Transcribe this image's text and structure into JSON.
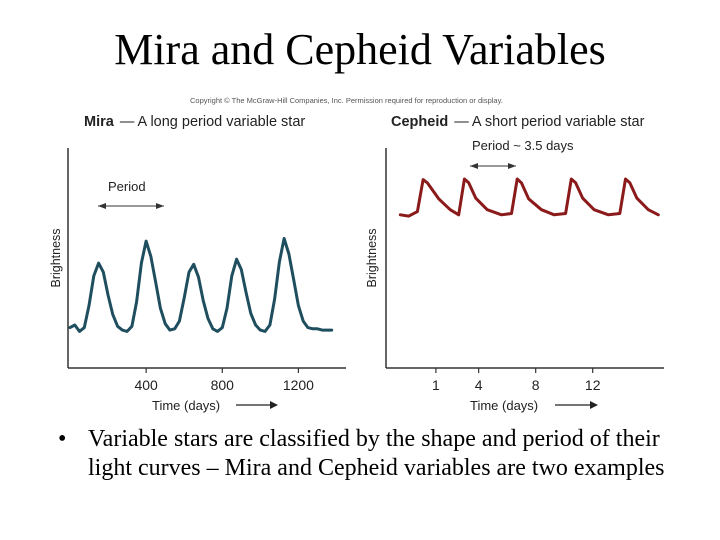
{
  "slide": {
    "title": "Mira and Cepheid Variables",
    "copyright": "Copyright © The McGraw-Hill Companies, Inc. Permission required for reproduction or display.",
    "bullet": "•",
    "caption": "Variable stars are classified by the shape and period of their light curves – Mira and Cepheid variables are two examples"
  },
  "chart_data": [
    {
      "type": "line",
      "title_bold": "Mira",
      "title_rest": "— A long period variable star",
      "xlabel": "Time (days)",
      "ylabel": "Brightness",
      "x_ticks": [
        400,
        800,
        1200
      ],
      "xlim": [
        0,
        1450
      ],
      "annotation": "Period",
      "color": "#1f4e5f",
      "series": [
        {
          "x": [
            0,
            25,
            50,
            75,
            100,
            125,
            150,
            175,
            200,
            225,
            250,
            275,
            300,
            325,
            350,
            375,
            400,
            425,
            450,
            475,
            500,
            525,
            550,
            575,
            600,
            625,
            650,
            675,
            700,
            725,
            750,
            775,
            800,
            825,
            850,
            875,
            900,
            925,
            950,
            975,
            1000,
            1025,
            1050,
            1075,
            1100,
            1125,
            1150,
            1175,
            1200,
            1225,
            1250,
            1275,
            1300,
            1325,
            1350,
            1375
          ],
          "y": [
            0.05,
            0.07,
            0.02,
            0.05,
            0.22,
            0.45,
            0.55,
            0.48,
            0.3,
            0.15,
            0.06,
            0.03,
            0.02,
            0.06,
            0.25,
            0.55,
            0.72,
            0.6,
            0.4,
            0.2,
            0.08,
            0.03,
            0.04,
            0.1,
            0.28,
            0.48,
            0.54,
            0.44,
            0.26,
            0.12,
            0.04,
            0.02,
            0.05,
            0.2,
            0.45,
            0.58,
            0.5,
            0.32,
            0.16,
            0.07,
            0.03,
            0.02,
            0.07,
            0.27,
            0.56,
            0.74,
            0.62,
            0.42,
            0.22,
            0.1,
            0.05,
            0.04,
            0.04,
            0.03,
            0.03,
            0.03
          ]
        }
      ]
    },
    {
      "type": "line",
      "title_bold": "Cepheid",
      "title_rest": "— A short period variable star",
      "xlabel": "Time (days)",
      "ylabel": "Brightness",
      "x_ticks": [
        1,
        4,
        8,
        12
      ],
      "xlim": [
        -2.5,
        17
      ],
      "annotation": "Period ~ 3.5 days",
      "color": "#8b1a1a",
      "series": [
        {
          "x": [
            -1.5,
            -0.9,
            -0.3,
            0.1,
            0.4,
            1.2,
            2.0,
            2.6,
            3.0,
            3.3,
            3.8,
            4.6,
            5.6,
            6.3,
            6.7,
            7.0,
            7.5,
            8.4,
            9.3,
            10.1,
            10.5,
            10.8,
            11.3,
            12.1,
            13.1,
            13.9,
            14.3,
            14.6,
            15.1,
            15.9,
            16.6
          ],
          "y": [
            0.3,
            0.28,
            0.35,
            0.85,
            0.8,
            0.55,
            0.38,
            0.3,
            0.86,
            0.8,
            0.56,
            0.38,
            0.3,
            0.32,
            0.86,
            0.8,
            0.55,
            0.38,
            0.3,
            0.32,
            0.86,
            0.8,
            0.56,
            0.38,
            0.3,
            0.32,
            0.86,
            0.8,
            0.56,
            0.38,
            0.3
          ]
        }
      ]
    }
  ]
}
